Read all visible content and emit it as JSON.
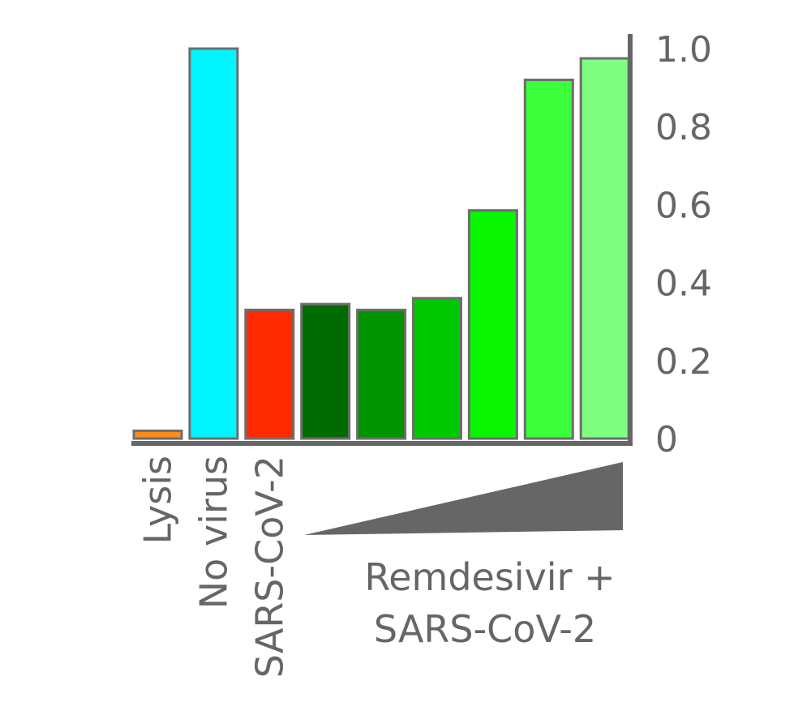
{
  "chart_data": {
    "type": "bar",
    "categories": [
      "Lysis",
      "No virus",
      "SARS-CoV-2",
      "",
      "",
      "",
      "",
      "",
      ""
    ],
    "values": [
      0.02,
      1.0,
      0.33,
      0.345,
      0.33,
      0.36,
      0.585,
      0.92,
      0.975
    ],
    "bar_colors": [
      "#FF8C1A",
      "#00F5FF",
      "#FF2A00",
      "#006B00",
      "#009400",
      "#00C800",
      "#0AF500",
      "#3CFF3C",
      "#7FFF7F"
    ],
    "bar_border_color": "#6E6E6E",
    "axis_color": "#666666",
    "ylim": [
      0,
      1.0
    ],
    "yticks": [
      "0",
      "0.2",
      "0.4",
      "0.6",
      "0.8",
      "1.0"
    ],
    "y_axis_side": "right",
    "dose_wedge_color": "#666666",
    "group_label_line1": "Remdesivir +",
    "group_label_line2": "SARS-CoV-2",
    "title": "",
    "xlabel": "",
    "ylabel": ""
  }
}
